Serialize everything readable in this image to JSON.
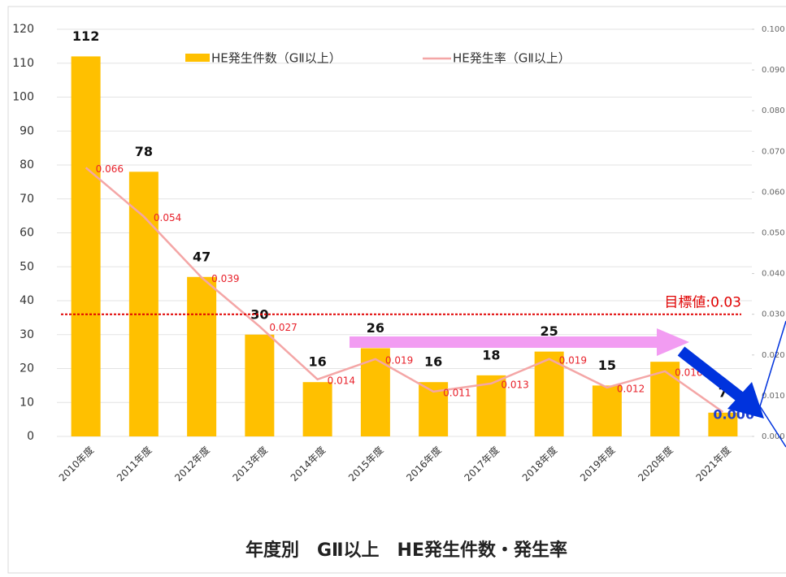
{
  "chart_data": {
    "type": "bar_line",
    "title": "年度別　GⅡ以上　HE発生件数・発生率",
    "categories": [
      "2010年度",
      "2011年度",
      "2012年度",
      "2013年度",
      "2014年度",
      "2015年度",
      "2016年度",
      "2017年度",
      "2018年度",
      "2019年度",
      "2020年度",
      "2021年度"
    ],
    "series": [
      {
        "name": "HE発生件数（GⅡ以上）",
        "color": "#ffc000",
        "type": "bar",
        "values": [
          112,
          78,
          47,
          30,
          16,
          26,
          16,
          18,
          25,
          15,
          22,
          7
        ]
      },
      {
        "name": "HE発生率（GⅡ以上）",
        "color": "#f4a6a6",
        "type": "line",
        "axis": "y2",
        "values": [
          0.066,
          0.054,
          0.039,
          0.027,
          0.014,
          0.019,
          0.011,
          0.013,
          0.019,
          0.012,
          0.016,
          0.006
        ]
      }
    ],
    "ylim": [
      0,
      120
    ],
    "yticks": [
      0,
      10,
      20,
      30,
      40,
      50,
      60,
      70,
      80,
      90,
      100,
      110,
      120
    ],
    "y2lim": [
      0,
      0.1
    ],
    "y2ticks": [
      {
        "value": 0,
        "label": "0.000"
      },
      {
        "value": 0.01,
        "label": "0.010"
      },
      {
        "value": 0.02,
        "label": "0.020"
      },
      {
        "value": 0.03,
        "label": "0.030"
      },
      {
        "value": 0.04,
        "label": "0.040"
      },
      {
        "value": 0.05,
        "label": "0.050"
      },
      {
        "value": 0.06,
        "label": "0.060"
      },
      {
        "value": 0.07,
        "label": "0.070"
      },
      {
        "value": 0.08,
        "label": "0.080"
      },
      {
        "value": 0.09,
        "label": "0.090"
      },
      {
        "value": 0.1,
        "label": "0.100"
      }
    ],
    "grid": true,
    "target": {
      "value": 0.03,
      "label": "目標値:0.03"
    }
  }
}
